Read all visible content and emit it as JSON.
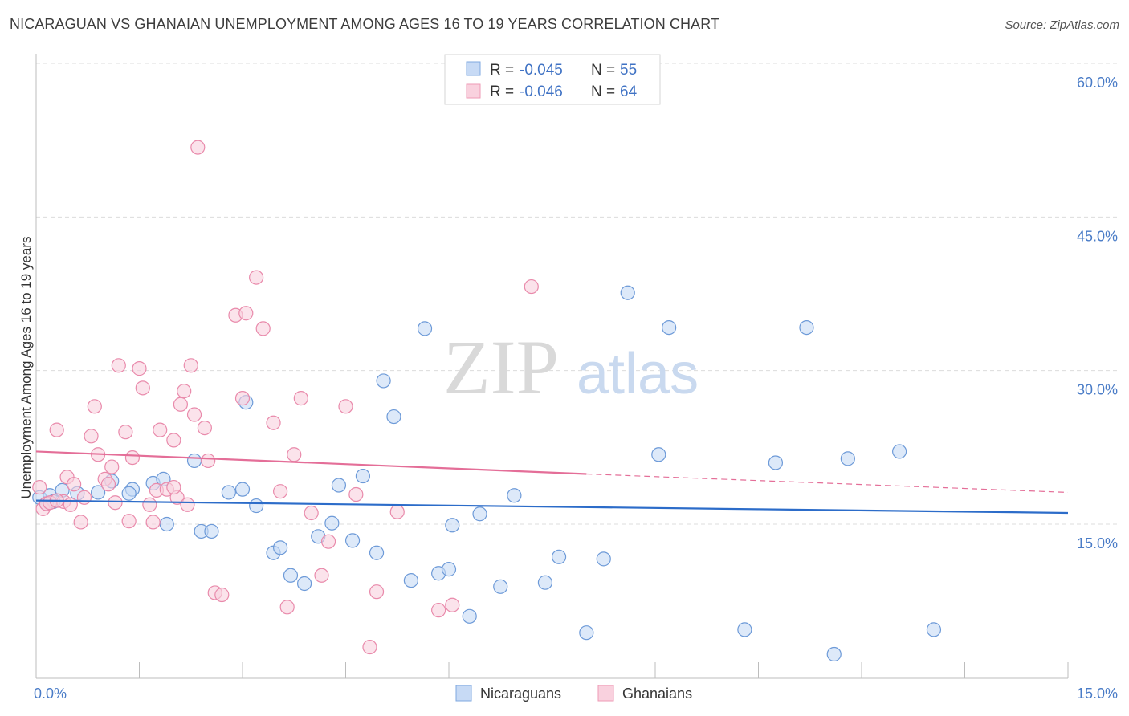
{
  "title": "NICARAGUAN VS GHANAIAN UNEMPLOYMENT AMONG AGES 16 TO 19 YEARS CORRELATION CHART",
  "source": "Source: ZipAtlas.com",
  "watermark": {
    "zip": "ZIP",
    "atlas": "atlas"
  },
  "legend": {
    "rows": [
      {
        "r_label": "R =",
        "r_value": "-0.045",
        "n_label": "N =",
        "n_value": "55",
        "color": "#7fa8e0",
        "fill": "#c7daf5"
      },
      {
        "r_label": "R =",
        "r_value": "-0.046",
        "n_label": "N =",
        "n_value": "64",
        "color": "#ee9ab5",
        "fill": "#f9d1de"
      }
    ]
  },
  "bottom_legend": [
    {
      "name": "Nicaraguans",
      "color": "#7fa8e0",
      "fill": "#c7daf5"
    },
    {
      "name": "Ghanaians",
      "color": "#ee9ab5",
      "fill": "#f9d1de"
    }
  ],
  "chart_data": {
    "type": "scatter",
    "title": "NICARAGUAN VS GHANAIAN UNEMPLOYMENT AMONG AGES 16 TO 19 YEARS CORRELATION CHART",
    "xlabel": "",
    "ylabel": "Unemployment Among Ages 16 to 19 years",
    "xlim": [
      0,
      15
    ],
    "ylim": [
      0,
      61.5
    ],
    "x_tick_labels": [
      {
        "value": 0,
        "label": "0.0%"
      },
      {
        "value": 15,
        "label": "15.0%"
      }
    ],
    "y_tick_labels": [
      {
        "value": 15,
        "label": "15.0%"
      },
      {
        "value": 30,
        "label": "30.0%"
      },
      {
        "value": 45,
        "label": "45.0%"
      },
      {
        "value": 60,
        "label": "60.0%"
      }
    ],
    "grid": true,
    "legend_position": "top-center",
    "series": [
      {
        "name": "Nicaraguans",
        "stroke": "#6d9ad8",
        "fill": "#c7daf5",
        "trend": {
          "x": [
            0,
            15
          ],
          "y": [
            17.3,
            16.1
          ],
          "color": "#2c6cc9"
        },
        "points": [
          [
            0.05,
            17.6
          ],
          [
            0.2,
            17.8
          ],
          [
            0.38,
            18.3
          ],
          [
            0.6,
            18.0
          ],
          [
            0.25,
            17.2
          ],
          [
            0.9,
            18.1
          ],
          [
            1.1,
            19.2
          ],
          [
            1.4,
            18.4
          ],
          [
            1.35,
            18.0
          ],
          [
            1.7,
            19.0
          ],
          [
            1.85,
            19.4
          ],
          [
            1.9,
            15.0
          ],
          [
            2.3,
            21.2
          ],
          [
            2.4,
            14.3
          ],
          [
            2.55,
            14.3
          ],
          [
            2.8,
            18.1
          ],
          [
            3.0,
            18.4
          ],
          [
            3.05,
            26.9
          ],
          [
            3.2,
            16.8
          ],
          [
            3.45,
            12.2
          ],
          [
            3.55,
            12.7
          ],
          [
            3.7,
            10.0
          ],
          [
            3.9,
            9.2
          ],
          [
            4.1,
            13.8
          ],
          [
            4.3,
            15.1
          ],
          [
            4.4,
            18.8
          ],
          [
            4.6,
            13.4
          ],
          [
            4.75,
            19.7
          ],
          [
            4.95,
            12.2
          ],
          [
            5.05,
            29.0
          ],
          [
            5.2,
            25.5
          ],
          [
            5.45,
            9.5
          ],
          [
            5.65,
            34.1
          ],
          [
            5.85,
            10.2
          ],
          [
            6.0,
            10.6
          ],
          [
            6.05,
            14.9
          ],
          [
            6.3,
            6.0
          ],
          [
            6.45,
            16.0
          ],
          [
            6.75,
            8.9
          ],
          [
            6.95,
            17.8
          ],
          [
            7.4,
            9.3
          ],
          [
            7.6,
            11.8
          ],
          [
            8.0,
            4.4
          ],
          [
            8.25,
            11.6
          ],
          [
            8.6,
            37.6
          ],
          [
            9.05,
            21.8
          ],
          [
            9.2,
            34.2
          ],
          [
            10.3,
            4.7
          ],
          [
            10.75,
            21.0
          ],
          [
            11.2,
            34.2
          ],
          [
            11.6,
            2.3
          ],
          [
            11.8,
            21.4
          ],
          [
            12.55,
            22.1
          ],
          [
            13.05,
            4.7
          ],
          [
            0.15,
            17.0
          ]
        ]
      },
      {
        "name": "Ghanaians",
        "stroke": "#e98aab",
        "fill": "#f9d1de",
        "trend": {
          "x": [
            0,
            8
          ],
          "y": [
            22.1,
            19.9
          ],
          "dash_x": [
            8,
            15
          ],
          "dash_y": [
            19.9,
            18.1
          ],
          "color": "#e46e98"
        },
        "points": [
          [
            0.05,
            18.6
          ],
          [
            0.1,
            16.5
          ],
          [
            0.15,
            17.0
          ],
          [
            0.2,
            17.1
          ],
          [
            0.3,
            24.2
          ],
          [
            0.4,
            17.2
          ],
          [
            0.45,
            19.6
          ],
          [
            0.5,
            16.9
          ],
          [
            0.55,
            18.9
          ],
          [
            0.65,
            15.2
          ],
          [
            0.7,
            17.6
          ],
          [
            0.8,
            23.6
          ],
          [
            0.85,
            26.5
          ],
          [
            0.9,
            21.8
          ],
          [
            1.0,
            19.4
          ],
          [
            1.05,
            18.9
          ],
          [
            1.1,
            20.6
          ],
          [
            1.15,
            17.1
          ],
          [
            1.2,
            30.5
          ],
          [
            1.3,
            24.0
          ],
          [
            1.35,
            15.3
          ],
          [
            1.4,
            21.5
          ],
          [
            1.5,
            30.2
          ],
          [
            1.55,
            28.3
          ],
          [
            1.65,
            16.9
          ],
          [
            1.7,
            15.2
          ],
          [
            1.75,
            18.3
          ],
          [
            1.8,
            24.2
          ],
          [
            1.9,
            18.4
          ],
          [
            2.0,
            23.2
          ],
          [
            2.05,
            17.6
          ],
          [
            2.1,
            26.7
          ],
          [
            2.15,
            28.0
          ],
          [
            2.2,
            16.9
          ],
          [
            2.25,
            30.5
          ],
          [
            2.3,
            25.7
          ],
          [
            2.35,
            51.8
          ],
          [
            2.45,
            24.4
          ],
          [
            2.5,
            21.2
          ],
          [
            2.6,
            8.3
          ],
          [
            2.7,
            8.1
          ],
          [
            2.9,
            35.4
          ],
          [
            3.0,
            27.3
          ],
          [
            3.05,
            35.6
          ],
          [
            3.2,
            39.1
          ],
          [
            3.3,
            34.1
          ],
          [
            3.45,
            24.9
          ],
          [
            3.55,
            18.2
          ],
          [
            3.65,
            6.9
          ],
          [
            3.75,
            21.8
          ],
          [
            3.85,
            27.3
          ],
          [
            4.0,
            16.1
          ],
          [
            4.15,
            10.0
          ],
          [
            4.25,
            13.3
          ],
          [
            4.5,
            26.5
          ],
          [
            4.65,
            17.9
          ],
          [
            4.85,
            3.0
          ],
          [
            4.95,
            8.4
          ],
          [
            5.25,
            16.2
          ],
          [
            5.85,
            6.6
          ],
          [
            6.05,
            7.1
          ],
          [
            7.2,
            38.2
          ],
          [
            0.3,
            17.3
          ],
          [
            2.0,
            18.6
          ]
        ]
      }
    ]
  }
}
